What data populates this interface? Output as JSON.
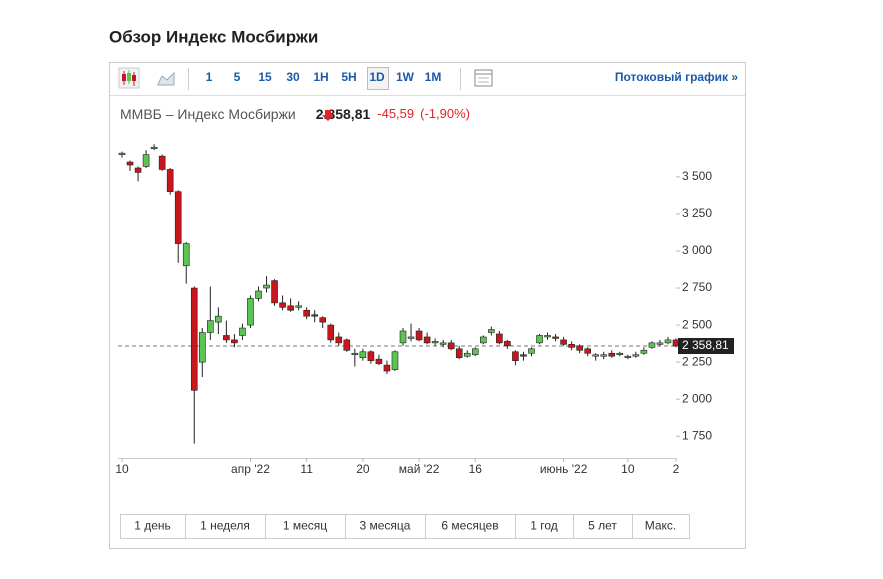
{
  "header": {
    "title": "Обзор Индекс Мосбиржи"
  },
  "toolbar": {
    "intervals": [
      "1",
      "5",
      "15",
      "30",
      "1H",
      "5H",
      "1D",
      "1W",
      "1M"
    ],
    "stream_link": "Потоковый график »"
  },
  "quote": {
    "name": "ММВБ – Индекс Мосбиржи",
    "price": "2.358,81",
    "change": "-45,59",
    "change_pct": "(-1,90%)"
  },
  "range_buttons": [
    "1 день",
    "1 неделя",
    "1 месяц",
    "3 месяца",
    "6 месяцев",
    "1 год",
    "5 лет",
    "Макс."
  ],
  "chart_data": {
    "type": "candlestick",
    "up_color": "#5cc452",
    "down_color": "#c8161d",
    "ylim": [
      1610,
      3715
    ],
    "yticks": [
      {
        "value": 1750,
        "label": "1 750"
      },
      {
        "value": 2000,
        "label": "2 000"
      },
      {
        "value": 2250,
        "label": "2 250"
      },
      {
        "value": 2500,
        "label": "2 500"
      },
      {
        "value": 2750,
        "label": "2 750"
      },
      {
        "value": 3000,
        "label": "3 000"
      },
      {
        "value": 3250,
        "label": "3 250"
      },
      {
        "value": 3500,
        "label": "3 500"
      }
    ],
    "last": {
      "value": 2358.81,
      "label": "2 358,81"
    },
    "categories": [
      "10",
      null,
      null,
      null,
      null,
      null,
      null,
      null,
      null,
      null,
      null,
      null,
      null,
      null,
      null,
      null,
      "апр '22",
      null,
      null,
      null,
      null,
      null,
      null,
      "11",
      null,
      null,
      null,
      null,
      null,
      null,
      "20",
      null,
      null,
      null,
      null,
      null,
      null,
      "май '22",
      null,
      null,
      null,
      null,
      null,
      null,
      "16",
      null,
      null,
      null,
      null,
      null,
      null,
      null,
      null,
      null,
      null,
      "июнь '22",
      null,
      null,
      null,
      null,
      null,
      null,
      null,
      "10",
      null,
      null,
      null,
      null,
      null,
      "2"
    ],
    "candles": [
      {
        "open": 3650,
        "high": 3670,
        "low": 3630,
        "close": 3660
      },
      {
        "open": 3600,
        "high": 3610,
        "low": 3540,
        "close": 3580
      },
      {
        "open": 3560,
        "high": 3570,
        "low": 3470,
        "close": 3530
      },
      {
        "open": 3570,
        "high": 3680,
        "low": 3560,
        "close": 3650
      },
      {
        "open": 3690,
        "high": 3720,
        "low": 3680,
        "close": 3700
      },
      {
        "open": 3640,
        "high": 3650,
        "low": 3540,
        "close": 3550
      },
      {
        "open": 3550,
        "high": 3560,
        "low": 3380,
        "close": 3400
      },
      {
        "open": 3400,
        "high": 3410,
        "low": 2920,
        "close": 3050
      },
      {
        "open": 2900,
        "high": 3060,
        "low": 2780,
        "close": 3050
      },
      {
        "open": 2750,
        "high": 2760,
        "low": 1700,
        "close": 2060
      },
      {
        "open": 2250,
        "high": 2480,
        "low": 2150,
        "close": 2450
      },
      {
        "open": 2450,
        "high": 2760,
        "low": 2400,
        "close": 2530
      },
      {
        "open": 2520,
        "high": 2620,
        "low": 2440,
        "close": 2560
      },
      {
        "open": 2430,
        "high": 2530,
        "low": 2380,
        "close": 2400
      },
      {
        "open": 2400,
        "high": 2440,
        "low": 2350,
        "close": 2380
      },
      {
        "open": 2430,
        "high": 2510,
        "low": 2400,
        "close": 2480
      },
      {
        "open": 2500,
        "high": 2700,
        "low": 2480,
        "close": 2680
      },
      {
        "open": 2680,
        "high": 2760,
        "low": 2660,
        "close": 2730
      },
      {
        "open": 2750,
        "high": 2830,
        "low": 2720,
        "close": 2770
      },
      {
        "open": 2800,
        "high": 2810,
        "low": 2630,
        "close": 2650
      },
      {
        "open": 2650,
        "high": 2700,
        "low": 2600,
        "close": 2620
      },
      {
        "open": 2630,
        "high": 2680,
        "low": 2590,
        "close": 2600
      },
      {
        "open": 2620,
        "high": 2660,
        "low": 2600,
        "close": 2630
      },
      {
        "open": 2600,
        "high": 2620,
        "low": 2540,
        "close": 2560
      },
      {
        "open": 2570,
        "high": 2600,
        "low": 2520,
        "close": 2560
      },
      {
        "open": 2550,
        "high": 2560,
        "low": 2480,
        "close": 2520
      },
      {
        "open": 2500,
        "high": 2510,
        "low": 2380,
        "close": 2400
      },
      {
        "open": 2420,
        "high": 2450,
        "low": 2360,
        "close": 2380
      },
      {
        "open": 2400,
        "high": 2410,
        "low": 2320,
        "close": 2330
      },
      {
        "open": 2300,
        "high": 2340,
        "low": 2220,
        "close": 2310
      },
      {
        "open": 2280,
        "high": 2340,
        "low": 2260,
        "close": 2320
      },
      {
        "open": 2320,
        "high": 2330,
        "low": 2240,
        "close": 2260
      },
      {
        "open": 2270,
        "high": 2300,
        "low": 2230,
        "close": 2240
      },
      {
        "open": 2230,
        "high": 2260,
        "low": 2170,
        "close": 2190
      },
      {
        "open": 2200,
        "high": 2330,
        "low": 2190,
        "close": 2320
      },
      {
        "open": 2380,
        "high": 2480,
        "low": 2360,
        "close": 2460
      },
      {
        "open": 2410,
        "high": 2510,
        "low": 2390,
        "close": 2420
      },
      {
        "open": 2460,
        "high": 2480,
        "low": 2390,
        "close": 2400
      },
      {
        "open": 2420,
        "high": 2450,
        "low": 2370,
        "close": 2380
      },
      {
        "open": 2380,
        "high": 2410,
        "low": 2360,
        "close": 2390
      },
      {
        "open": 2370,
        "high": 2400,
        "low": 2350,
        "close": 2380
      },
      {
        "open": 2380,
        "high": 2400,
        "low": 2330,
        "close": 2340
      },
      {
        "open": 2340,
        "high": 2360,
        "low": 2270,
        "close": 2280
      },
      {
        "open": 2290,
        "high": 2330,
        "low": 2280,
        "close": 2310
      },
      {
        "open": 2300,
        "high": 2350,
        "low": 2290,
        "close": 2340
      },
      {
        "open": 2380,
        "high": 2430,
        "low": 2370,
        "close": 2420
      },
      {
        "open": 2450,
        "high": 2490,
        "low": 2430,
        "close": 2470
      },
      {
        "open": 2440,
        "high": 2460,
        "low": 2370,
        "close": 2380
      },
      {
        "open": 2390,
        "high": 2400,
        "low": 2340,
        "close": 2360
      },
      {
        "open": 2320,
        "high": 2330,
        "low": 2230,
        "close": 2260
      },
      {
        "open": 2300,
        "high": 2320,
        "low": 2260,
        "close": 2290
      },
      {
        "open": 2310,
        "high": 2350,
        "low": 2290,
        "close": 2340
      },
      {
        "open": 2380,
        "high": 2440,
        "low": 2370,
        "close": 2430
      },
      {
        "open": 2420,
        "high": 2450,
        "low": 2400,
        "close": 2430
      },
      {
        "open": 2420,
        "high": 2440,
        "low": 2390,
        "close": 2410
      },
      {
        "open": 2400,
        "high": 2420,
        "low": 2360,
        "close": 2370
      },
      {
        "open": 2370,
        "high": 2390,
        "low": 2330,
        "close": 2350
      },
      {
        "open": 2360,
        "high": 2370,
        "low": 2310,
        "close": 2330
      },
      {
        "open": 2340,
        "high": 2350,
        "low": 2290,
        "close": 2310
      },
      {
        "open": 2290,
        "high": 2310,
        "low": 2260,
        "close": 2300
      },
      {
        "open": 2290,
        "high": 2320,
        "low": 2270,
        "close": 2300
      },
      {
        "open": 2310,
        "high": 2330,
        "low": 2280,
        "close": 2290
      },
      {
        "open": 2300,
        "high": 2320,
        "low": 2290,
        "close": 2310
      },
      {
        "open": 2280,
        "high": 2300,
        "low": 2270,
        "close": 2290
      },
      {
        "open": 2290,
        "high": 2320,
        "low": 2280,
        "close": 2300
      },
      {
        "open": 2310,
        "high": 2350,
        "low": 2300,
        "close": 2330
      },
      {
        "open": 2350,
        "high": 2390,
        "low": 2340,
        "close": 2380
      },
      {
        "open": 2370,
        "high": 2400,
        "low": 2360,
        "close": 2380
      },
      {
        "open": 2380,
        "high": 2420,
        "low": 2370,
        "close": 2400
      },
      {
        "open": 2400,
        "high": 2410,
        "low": 2350,
        "close": 2358.81
      }
    ]
  }
}
